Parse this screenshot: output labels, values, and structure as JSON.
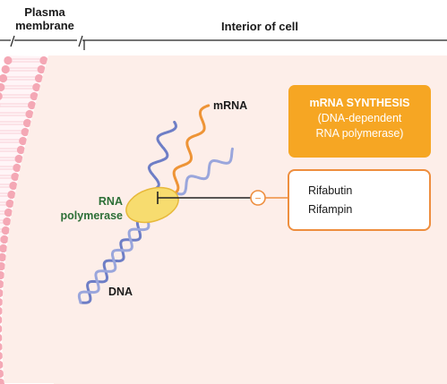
{
  "headers": {
    "plasma_membrane": "Plasma\nmembrane",
    "interior": "Interior of cell"
  },
  "labels": {
    "mrna": "mRNA",
    "rna_polymerase": "RNA\npolymerase",
    "dna": "DNA"
  },
  "process_box": {
    "title": "mRNA SYNTHESIS",
    "subtitle": "(DNA-dependent\nRNA polymerase)"
  },
  "inhibitor_symbol": "−",
  "drugs": [
    "Rifabutin",
    "Rifampin"
  ],
  "colors": {
    "cell_interior": "#fdeee9",
    "membrane_head": "#f4a8b5",
    "membrane_tail": "#fbd7dd",
    "dna_strand": "#6e7ec6",
    "dna_strand_light": "#9aa6dc",
    "mrna_strand": "#ee9436",
    "polymerase": "#f7dc6f",
    "polymerase_edge": "#e7b93b",
    "process_box": "#f6a623",
    "drug_box_border": "#ee8e3e",
    "label_green": "#2d6f37"
  },
  "icons": {
    "inhibition": "inhibit-bar-icon",
    "negative": "minus-circle-icon"
  }
}
